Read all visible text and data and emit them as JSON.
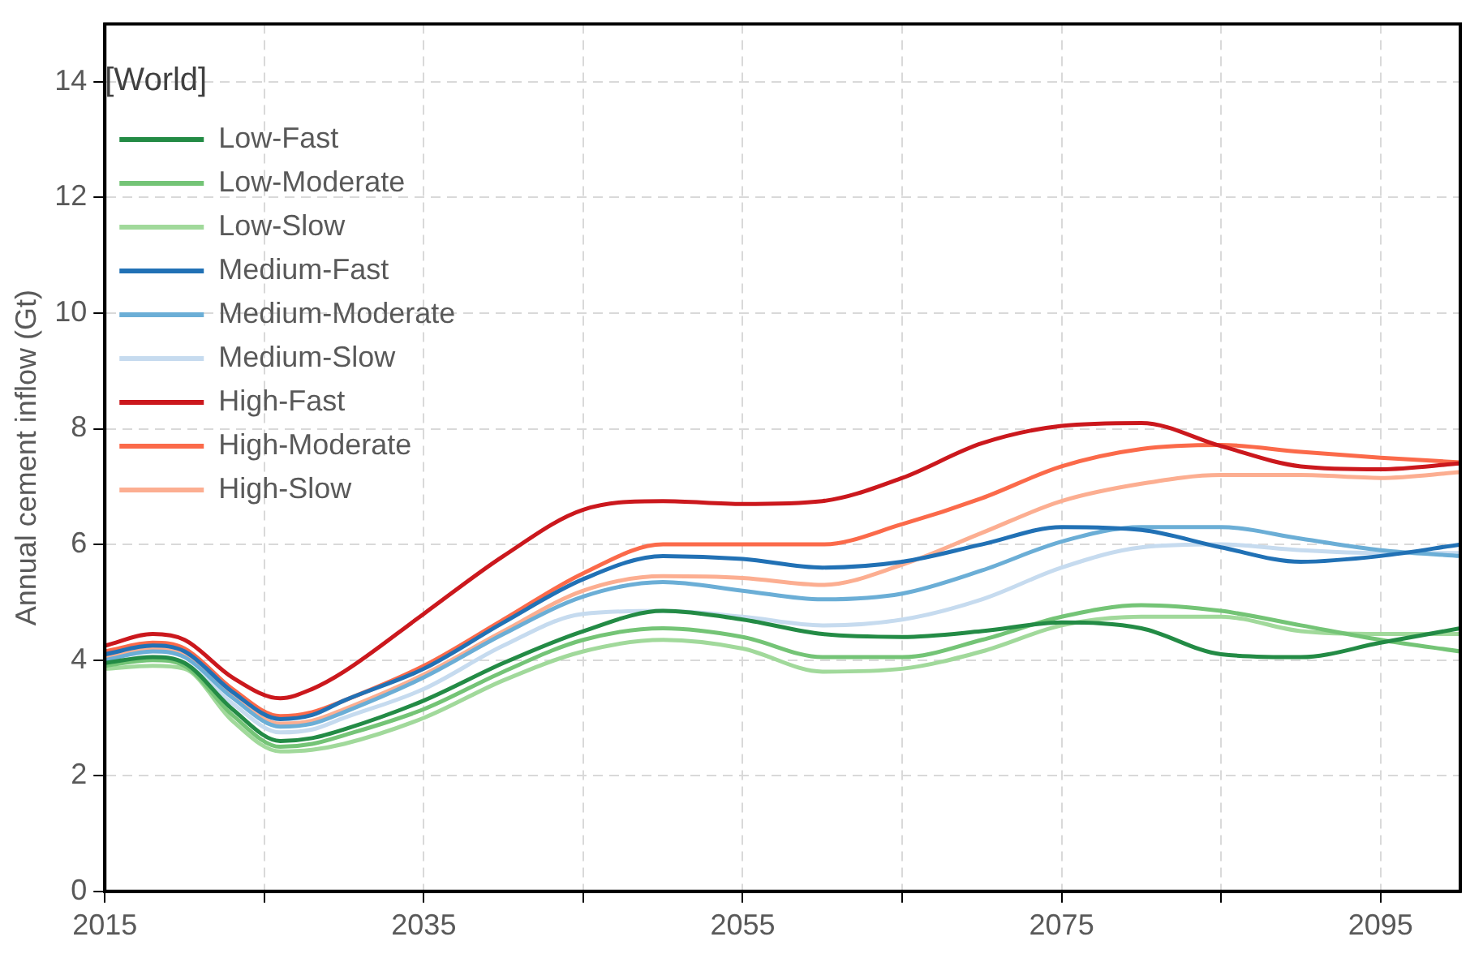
{
  "chart_data": {
    "type": "line",
    "ylabel": "Annual cement inflow (Gt)",
    "legend_title": "[World]",
    "legend": "top left",
    "grid": true,
    "marker": "none",
    "line_style": "solid",
    "x": [
      2015,
      2018,
      2020,
      2023,
      2026,
      2028,
      2030,
      2035,
      2040,
      2045,
      2050,
      2055,
      2060,
      2065,
      2070,
      2075,
      2080,
      2085,
      2090,
      2095,
      2100
    ],
    "xlim": [
      2015,
      2100
    ],
    "xticks": [
      2015,
      {
        "value": 2025,
        "label": null
      },
      2035,
      {
        "value": 2045,
        "label": null
      },
      2055,
      {
        "value": 2065,
        "label": null
      },
      2075,
      {
        "value": 2085,
        "label": null
      },
      2095
    ],
    "ylim": [
      0,
      15
    ],
    "yticks": [
      0,
      2,
      4,
      6,
      8,
      10,
      12,
      14
    ],
    "series": [
      {
        "name": "Low-Fast",
        "color": "#238b45",
        "values": [
          3.95,
          4.05,
          3.95,
          3.15,
          2.6,
          2.65,
          2.8,
          3.3,
          3.95,
          4.5,
          4.85,
          4.7,
          4.45,
          4.4,
          4.5,
          4.65,
          4.55,
          4.1,
          4.05,
          4.3,
          4.55
        ]
      },
      {
        "name": "Low-Moderate",
        "color": "#74c476",
        "values": [
          3.9,
          4.0,
          3.9,
          3.05,
          2.5,
          2.55,
          2.7,
          3.15,
          3.8,
          4.35,
          4.55,
          4.4,
          4.05,
          4.05,
          4.35,
          4.75,
          4.95,
          4.85,
          4.6,
          4.35,
          4.15
        ]
      },
      {
        "name": "Low-Slow",
        "color": "#a1d99b",
        "values": [
          3.85,
          3.9,
          3.85,
          2.95,
          2.42,
          2.45,
          2.55,
          3.0,
          3.65,
          4.15,
          4.35,
          4.2,
          3.8,
          3.85,
          4.15,
          4.6,
          4.75,
          4.75,
          4.5,
          4.45,
          4.45
        ]
      },
      {
        "name": "Medium-Fast",
        "color": "#2171b5",
        "values": [
          4.1,
          4.25,
          4.15,
          3.45,
          2.98,
          3.05,
          3.3,
          3.85,
          4.65,
          5.4,
          5.8,
          5.75,
          5.6,
          5.7,
          6.0,
          6.3,
          6.25,
          5.95,
          5.7,
          5.8,
          6.0
        ]
      },
      {
        "name": "Medium-Moderate",
        "color": "#6baed6",
        "values": [
          4.0,
          4.15,
          4.05,
          3.35,
          2.85,
          2.9,
          3.1,
          3.7,
          4.45,
          5.1,
          5.35,
          5.2,
          5.05,
          5.15,
          5.55,
          6.05,
          6.3,
          6.3,
          6.1,
          5.9,
          5.8
        ]
      },
      {
        "name": "Medium-Slow",
        "color": "#c6dbef",
        "values": [
          3.95,
          4.05,
          3.95,
          3.25,
          2.75,
          2.8,
          3.0,
          3.5,
          4.25,
          4.8,
          4.85,
          4.75,
          4.6,
          4.7,
          5.05,
          5.6,
          5.95,
          6.0,
          5.9,
          5.85,
          5.85
        ]
      },
      {
        "name": "High-Fast",
        "color": "#cb181d",
        "values": [
          4.25,
          4.45,
          4.35,
          3.7,
          3.34,
          3.5,
          3.8,
          4.8,
          5.8,
          6.6,
          6.75,
          6.7,
          6.75,
          7.15,
          7.75,
          8.05,
          8.1,
          7.7,
          7.35,
          7.3,
          7.4
        ]
      },
      {
        "name": "High-Moderate",
        "color": "#fb6a4a",
        "values": [
          4.15,
          4.3,
          4.2,
          3.5,
          3.03,
          3.1,
          3.3,
          3.9,
          4.7,
          5.5,
          6.0,
          6.0,
          6.0,
          6.35,
          6.8,
          7.35,
          7.65,
          7.72,
          7.6,
          7.5,
          7.42
        ]
      },
      {
        "name": "High-Slow",
        "color": "#fcae91",
        "values": [
          4.05,
          4.2,
          4.1,
          3.4,
          2.9,
          2.95,
          3.15,
          3.75,
          4.5,
          5.2,
          5.45,
          5.42,
          5.3,
          5.65,
          6.2,
          6.75,
          7.05,
          7.2,
          7.2,
          7.15,
          7.25
        ]
      }
    ]
  }
}
